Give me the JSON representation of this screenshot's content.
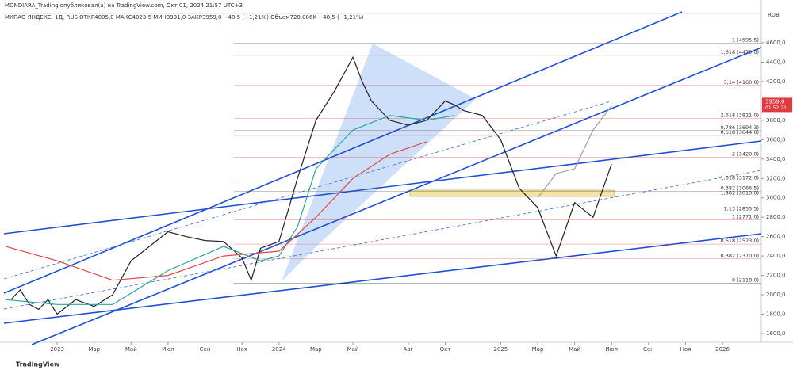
{
  "header": {
    "publisher": "MONDIARA_Trading опубликовал(а) на TradingView.com, Окт 01, 2024 21:57 UTC+3",
    "symbol_line": "МКПАО ЯНДЕКС, 1Д, RUS  ОТКР4005,0  МАКС4023,5  МИН3931,0  ЗАКР3959,0  −48,5 (−1,21%)  Объем720,086K  −48,5 (−1,21%)",
    "currency": "RUB",
    "last_price": "3959,0",
    "countdown": "01:52:21",
    "logo": "TradingView"
  },
  "chart_data": {
    "type": "line",
    "ylim": [
      1510,
      4976
    ],
    "yticks": [
      {
        "value": 1600,
        "label": "1600,0"
      },
      {
        "value": 1800,
        "label": "1800,0"
      },
      {
        "value": 2000,
        "label": "2000,0"
      },
      {
        "value": 2200,
        "label": "2200,0"
      },
      {
        "value": 2400,
        "label": "2400,0"
      },
      {
        "value": 2600,
        "label": "2600,0"
      },
      {
        "value": 2800,
        "label": "2800,0"
      },
      {
        "value": 3000,
        "label": "3000,0"
      },
      {
        "value": 3200,
        "label": "3200,0"
      },
      {
        "value": 3400,
        "label": "3400,0"
      },
      {
        "value": 3600,
        "label": "3600,0"
      },
      {
        "value": 3800,
        "label": "3800,0"
      },
      {
        "value": 4000,
        "label": "4000,0"
      },
      {
        "value": 4200,
        "label": "4200,0"
      },
      {
        "value": 4400,
        "label": "4400,0"
      },
      {
        "value": 4600,
        "label": "4600,0"
      }
    ],
    "xlim": [
      -2.88,
      38.1
    ],
    "xticks": [
      {
        "value": 0,
        "label": "2023"
      },
      {
        "value": 2,
        "label": "Мар"
      },
      {
        "value": 4,
        "label": "Май"
      },
      {
        "value": 6,
        "label": "Июл"
      },
      {
        "value": 8,
        "label": "Сен"
      },
      {
        "value": 10,
        "label": "Ноя"
      },
      {
        "value": 12,
        "label": "2024"
      },
      {
        "value": 14,
        "label": "Мар"
      },
      {
        "value": 16,
        "label": "Май"
      },
      {
        "value": 19,
        "label": "Авг"
      },
      {
        "value": 21,
        "label": "Окт"
      },
      {
        "value": 24,
        "label": "2025"
      },
      {
        "value": 26,
        "label": "Мар"
      },
      {
        "value": 28,
        "label": "Май"
      },
      {
        "value": 30,
        "label": "Июл"
      },
      {
        "value": 32,
        "label": "Сен"
      },
      {
        "value": 34,
        "label": "Ноя"
      },
      {
        "value": 36,
        "label": "2026"
      }
    ],
    "series": [
      {
        "color": "#222222",
        "x": [
          -2.5,
          -2,
          -1.5,
          -1,
          -0.5,
          0,
          1,
          2,
          3,
          4,
          5,
          6,
          7,
          8,
          9,
          10,
          10.5,
          11,
          12,
          13,
          14,
          15,
          16,
          16.5,
          17,
          18,
          19,
          20,
          21,
          21.5,
          22,
          23,
          24,
          25,
          26,
          27,
          28,
          29,
          30
        ],
        "values": [
          1950,
          2050,
          1900,
          1850,
          1950,
          1800,
          1950,
          1880,
          2000,
          2350,
          2500,
          2650,
          2600,
          2560,
          2550,
          2380,
          2150,
          2480,
          2550,
          3200,
          3800,
          4100,
          4450,
          4200,
          4000,
          3800,
          3750,
          3800,
          4000,
          3959,
          3900,
          3850,
          3600,
          3100,
          2900,
          2400,
          2950,
          2800,
          3350
        ]
      },
      {
        "color": "#9e9e9e",
        "x": [
          26,
          27,
          28,
          29,
          30
        ],
        "values": [
          3000,
          3250,
          3300,
          3700,
          3950
        ]
      },
      {
        "color": "#26a69a",
        "x": [
          -2.8,
          0,
          3,
          6,
          9,
          11,
          12,
          13,
          14,
          16,
          18,
          20,
          21.5
        ],
        "values": [
          1950,
          1900,
          1900,
          2250,
          2500,
          2350,
          2400,
          2700,
          3300,
          3700,
          3850,
          3800,
          3850
        ]
      },
      {
        "color": "#e04848",
        "x": [
          -2.8,
          0,
          3,
          6,
          9,
          12,
          14,
          16,
          18,
          20
        ],
        "values": [
          2500,
          2350,
          2150,
          2200,
          2400,
          2450,
          2800,
          3200,
          3450,
          3580
        ]
      }
    ],
    "fib_levels": [
      {
        "label": "1 (4595,5)",
        "value": 4595.5,
        "color": "#555555"
      },
      {
        "label": "1,618 (4470,0)",
        "value": 4470,
        "color": "#e04848"
      },
      {
        "label": "3,14 (4160,0)",
        "value": 4160,
        "color": "#e04848"
      },
      {
        "label": "2,618 (3821,0)",
        "value": 3821,
        "color": "#e04848"
      },
      {
        "label": "0,786 (3694,3)",
        "value": 3694.3,
        "color": "#555555"
      },
      {
        "label": "0,618 (3644,0)",
        "value": 3644,
        "color": "#e04848"
      },
      {
        "label": "2 (3420,0)",
        "value": 3420,
        "color": "#e04848"
      },
      {
        "label": "1,618 (3172,0)",
        "value": 3172,
        "color": "#e04848"
      },
      {
        "label": "0,382 (3066,5)",
        "value": 3066.5,
        "color": "#555555"
      },
      {
        "label": "1,382 (3019,0)",
        "value": 3019,
        "color": "#e04848"
      },
      {
        "label": "1,13 (2855,5)",
        "value": 2855.5,
        "color": "#e04848"
      },
      {
        "label": "1 (2771,0)",
        "value": 2771,
        "color": "#e04848"
      },
      {
        "label": "0,618 (2523,0)",
        "value": 2523,
        "color": "#e04848"
      },
      {
        "label": "0,382 (2370,0)",
        "value": 2370,
        "color": "#e04848"
      },
      {
        "label": "0 (2118,0)",
        "value": 2118,
        "color": "#222222"
      }
    ]
  }
}
